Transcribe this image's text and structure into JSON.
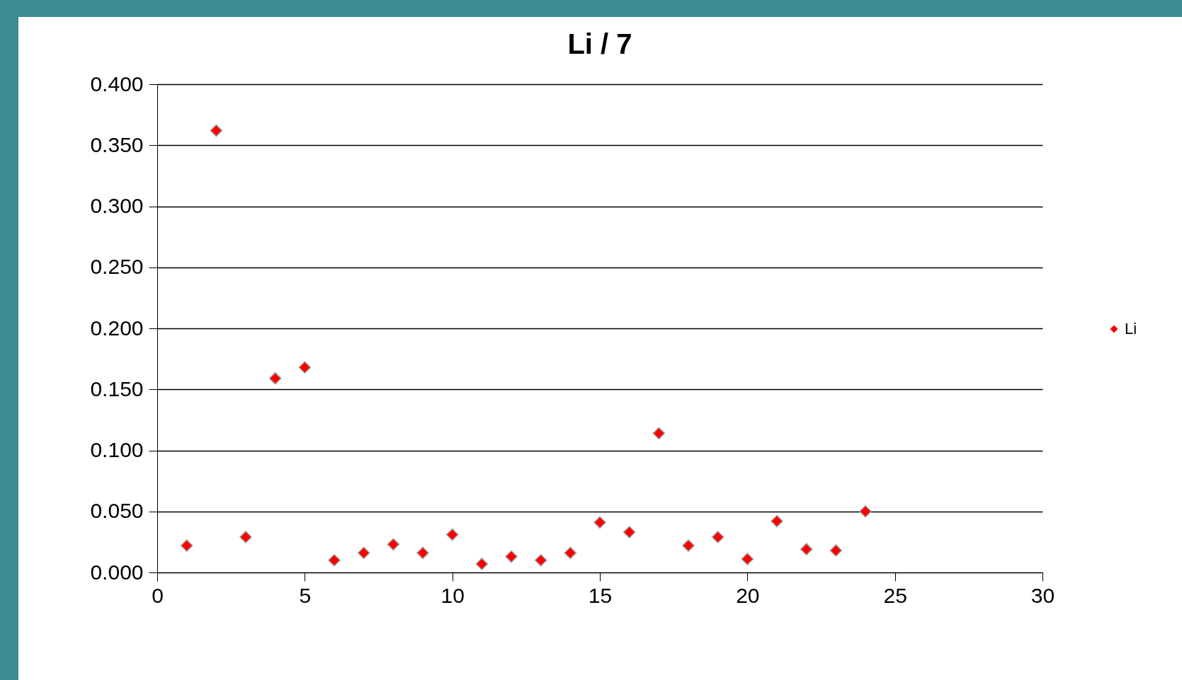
{
  "chart_data": {
    "type": "scatter",
    "title": "Li / 7",
    "x": [
      1,
      2,
      3,
      4,
      5,
      6,
      7,
      8,
      9,
      10,
      11,
      12,
      13,
      14,
      15,
      16,
      17,
      18,
      19,
      20,
      21,
      22,
      23,
      24
    ],
    "series": [
      {
        "name": "Li",
        "color": "#ff0000",
        "values": [
          0.022,
          0.362,
          0.029,
          0.159,
          0.168,
          0.01,
          0.016,
          0.023,
          0.016,
          0.031,
          0.007,
          0.013,
          0.01,
          0.016,
          0.041,
          0.033,
          0.114,
          0.022,
          0.029,
          0.011,
          0.042,
          0.019,
          0.018,
          0.05
        ]
      }
    ],
    "xlim": [
      0,
      30
    ],
    "xticks": [
      0,
      5,
      10,
      15,
      20,
      25,
      30
    ],
    "ylim": [
      0,
      0.4
    ],
    "yticks": [
      {
        "value": 0,
        "label": "0.000"
      },
      {
        "value": 0.05,
        "label": "0.050"
      },
      {
        "value": 0.1,
        "label": "0.100"
      },
      {
        "value": 0.15,
        "label": "0.150"
      },
      {
        "value": 0.2,
        "label": "0.200"
      },
      {
        "value": 0.25,
        "label": "0.250"
      },
      {
        "value": 0.3,
        "label": "0.300"
      },
      {
        "value": 0.35,
        "label": "0.350"
      },
      {
        "value": 0.4,
        "label": "0.400"
      }
    ],
    "grid": "y",
    "legend": "right",
    "marker": "diamond"
  }
}
